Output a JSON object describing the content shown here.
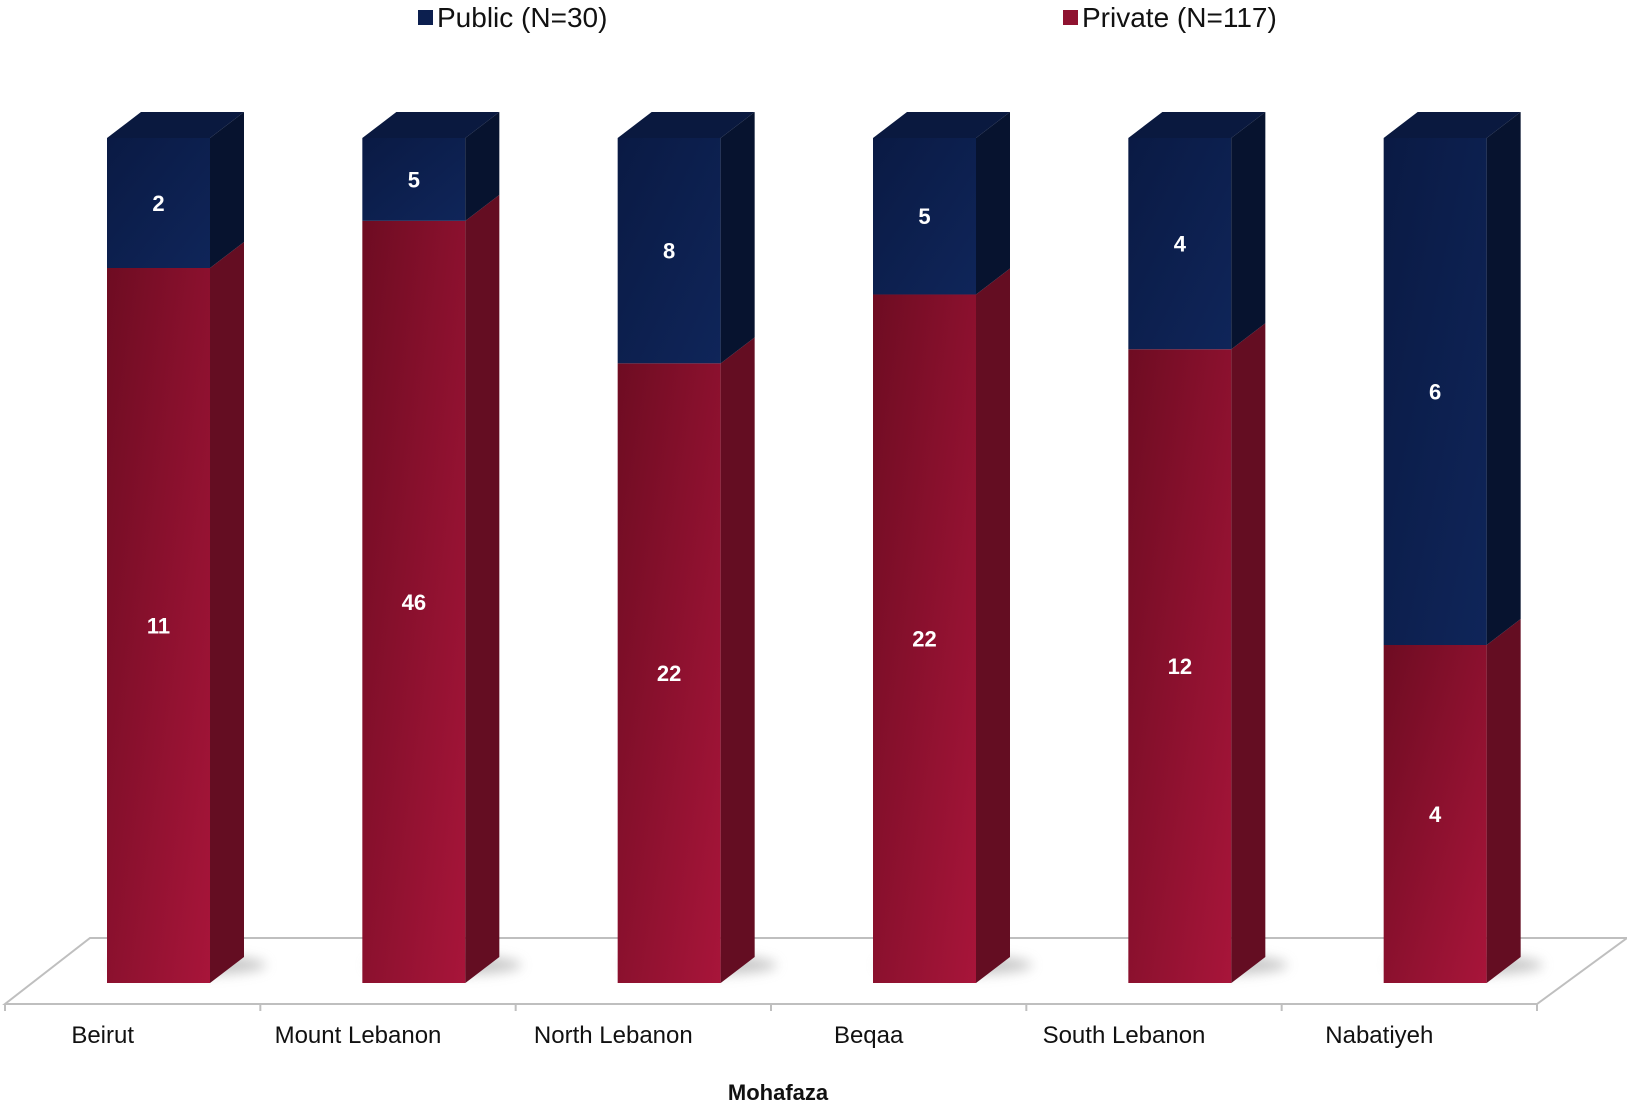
{
  "chart_data": {
    "type": "bar",
    "stacked": true,
    "normalized_percent": true,
    "three_d": true,
    "categories": [
      "Beirut",
      "Mount Lebanon",
      "North Lebanon",
      "Beqaa",
      "South Lebanon",
      "Nabatiyeh"
    ],
    "series": [
      {
        "name": "Public (N=30)",
        "values": [
          2,
          5,
          8,
          5,
          4,
          6
        ],
        "color": "#0c1f4f"
      },
      {
        "name": "Private (N=117)",
        "values": [
          11,
          46,
          22,
          22,
          12,
          4
        ],
        "color": "#8f1230"
      }
    ],
    "xlabel": "Mohafaza",
    "ylabel": "",
    "grid": false,
    "legend_position": "top"
  }
}
